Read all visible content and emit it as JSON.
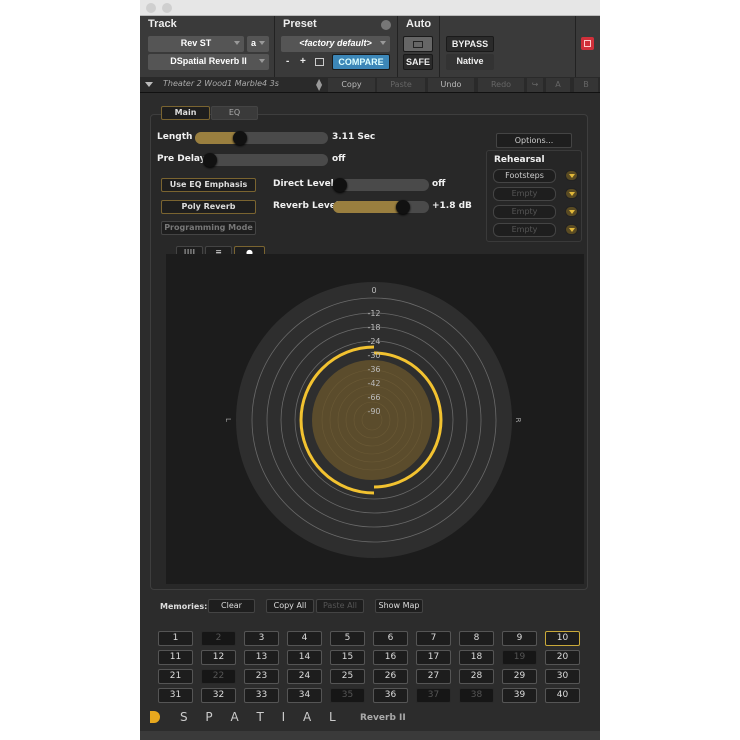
{
  "header": {
    "track_label": "Track",
    "preset_label": "Preset",
    "auto_label": "Auto",
    "track_name": "Rev ST",
    "track_channel": "a",
    "plugin_name": "DSpatial Reverb II",
    "preset_name": "<factory default>",
    "minus": "-",
    "plus": "+",
    "compare": "COMPARE",
    "safe": "SAFE",
    "bypass": "BYPASS",
    "native": "Native"
  },
  "toolbar": {
    "preset_file": "Theater 2 Wood1 Marble4 3s",
    "copy": "Copy",
    "paste": "Paste",
    "undo": "Undo",
    "redo": "Redo",
    "a": "A",
    "b": "B"
  },
  "tabs": {
    "main": "Main",
    "eq": "EQ"
  },
  "controls": {
    "length": {
      "label": "Length",
      "value": "3.11 Sec",
      "level": 0.32
    },
    "predelay": {
      "label": "Pre Delay",
      "value": "off",
      "level": 0.0
    },
    "direct": {
      "label": "Direct Level",
      "value": "off",
      "level": 0.0
    },
    "reverb": {
      "label": "Reverb Level",
      "value": "+1.8 dB",
      "level": 0.77
    },
    "use_eq": "Use EQ Emphasis",
    "poly": "Poly Reverb",
    "programming": "Programming Mode",
    "options": "Options..."
  },
  "rehearsal": {
    "title": "Rehearsal",
    "slots": [
      "Footsteps",
      "Empty",
      "Empty",
      "Empty"
    ]
  },
  "meter": {
    "scale": [
      "0",
      "-12",
      "-18",
      "-24",
      "-30",
      "-36",
      "-42",
      "-66",
      "-90"
    ],
    "left": "L",
    "right": "R",
    "accent": "#f2c230"
  },
  "memories": {
    "label": "Memories:",
    "clear": "Clear",
    "copy_all": "Copy All",
    "paste_all": "Paste All",
    "show_map": "Show Map",
    "slots": [
      "1",
      "2",
      "3",
      "4",
      "5",
      "6",
      "7",
      "8",
      "9",
      "10",
      "11",
      "12",
      "13",
      "14",
      "15",
      "16",
      "17",
      "18",
      "19",
      "20",
      "21",
      "22",
      "23",
      "24",
      "25",
      "26",
      "27",
      "28",
      "29",
      "30",
      "31",
      "32",
      "33",
      "34",
      "35",
      "36",
      "37",
      "38",
      "39",
      "40"
    ],
    "disabled": [
      "2",
      "19",
      "22",
      "35",
      "37",
      "38"
    ],
    "selected": "10"
  },
  "brand": {
    "logo": "D",
    "name": "S P A T I A L",
    "product": "Reverb II"
  }
}
